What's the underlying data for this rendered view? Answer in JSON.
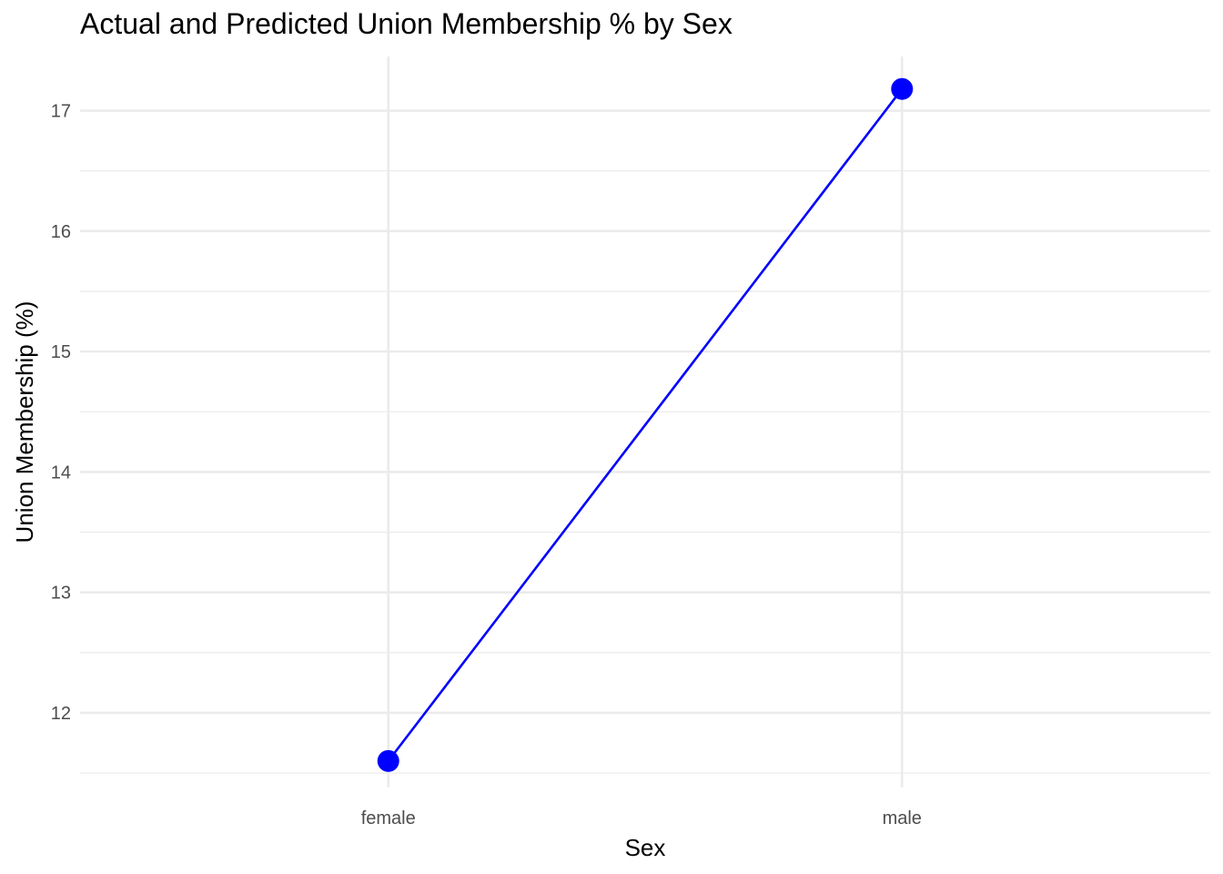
{
  "chart_data": {
    "type": "line",
    "title": "Actual and Predicted Union Membership % by Sex",
    "xlabel": "Sex",
    "ylabel": "Union Membership (%)",
    "categories": [
      "female",
      "male"
    ],
    "series": [
      {
        "values": [
          11.6,
          17.18
        ],
        "color": "#0000ff"
      }
    ],
    "y_ticks": [
      12,
      13,
      14,
      15,
      16,
      17
    ],
    "ylim": [
      11.38,
      17.45
    ],
    "grid": true,
    "legend": "none",
    "colors": {
      "series": "#0000ff",
      "grid": "#ebebeb",
      "tick_text": "#4d4d4d"
    }
  }
}
